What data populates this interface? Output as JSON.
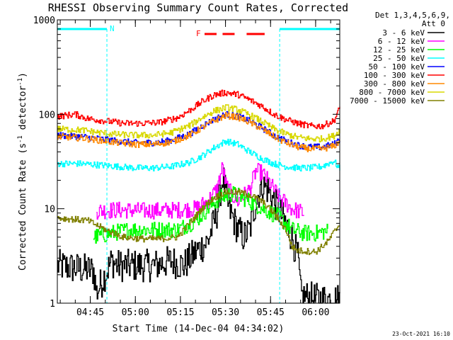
{
  "chart_data": {
    "type": "line",
    "title": "RHESSI Observing Summary Count Rates, Corrected",
    "xlabel": "Start Time (14-Dec-04 04:34:02)",
    "ylabel_main": "Corrected Count Rate (s",
    "ylabel_sup1": "-1",
    "ylabel_mid": " detector",
    "ylabel_sup2": "-1",
    "ylabel_end": ")",
    "y_scale": "log",
    "ylim": [
      1,
      1000
    ],
    "xlim_minutes": [
      0,
      94
    ],
    "x_ticks": [
      {
        "minute": 10.97,
        "label": "04:45"
      },
      {
        "minute": 25.97,
        "label": "05:00"
      },
      {
        "minute": 40.97,
        "label": "05:15"
      },
      {
        "minute": 55.97,
        "label": "05:30"
      },
      {
        "minute": 70.97,
        "label": "05:45"
      },
      {
        "minute": 85.97,
        "label": "06:00"
      }
    ],
    "y_ticks": [
      {
        "value": 1,
        "label": "1"
      },
      {
        "value": 10,
        "label": "10"
      },
      {
        "value": 100,
        "label": "100"
      },
      {
        "value": 1000,
        "label": "1000"
      }
    ],
    "legend_header_1": "Det 1,3,4,5,6,9,",
    "legend_header_2": "Att 0",
    "legend_placement": "right",
    "series": [
      {
        "name": "3 - 6 keV",
        "color": "#000000",
        "points": [
          [
            0,
            2.5
          ],
          [
            12,
            2.2
          ],
          [
            13,
            1.3
          ],
          [
            18,
            2.8
          ],
          [
            20,
            2.5
          ],
          [
            24,
            2.5
          ],
          [
            28,
            2.5
          ],
          [
            32,
            2.5
          ],
          [
            38,
            2.8
          ],
          [
            42,
            2.5
          ],
          [
            46,
            3.5
          ],
          [
            50,
            4.5
          ],
          [
            53,
            9
          ],
          [
            55,
            22
          ],
          [
            56,
            14
          ],
          [
            57,
            10
          ],
          [
            60,
            6
          ],
          [
            62,
            5
          ],
          [
            64,
            6
          ],
          [
            66,
            12
          ],
          [
            68,
            18
          ],
          [
            70,
            16
          ],
          [
            72,
            12
          ],
          [
            74,
            9
          ],
          [
            76,
            7
          ],
          [
            78,
            5
          ],
          [
            80,
            3
          ],
          [
            81,
            1.2
          ],
          [
            86,
            1.1
          ],
          [
            94,
            1.1
          ]
        ]
      },
      {
        "name": "6 - 12 keV",
        "color": "#ff00ff",
        "points": [
          [
            13,
            9.5
          ],
          [
            20,
            9.7
          ],
          [
            30,
            9.5
          ],
          [
            40,
            9.7
          ],
          [
            46,
            10
          ],
          [
            50,
            12
          ],
          [
            53,
            16
          ],
          [
            55,
            28
          ],
          [
            56,
            18
          ],
          [
            58,
            14
          ],
          [
            60,
            12
          ],
          [
            64,
            16
          ],
          [
            66,
            25
          ],
          [
            68,
            24
          ],
          [
            70,
            20
          ],
          [
            72,
            16
          ],
          [
            74,
            13
          ],
          [
            78,
            10
          ],
          [
            82,
            9
          ]
        ]
      },
      {
        "name": "12 - 25 keV",
        "color": "#00ff00",
        "points": [
          [
            12,
            5
          ],
          [
            18,
            5.5
          ],
          [
            24,
            6
          ],
          [
            32,
            6
          ],
          [
            40,
            6
          ],
          [
            46,
            7.5
          ],
          [
            50,
            10
          ],
          [
            54,
            13
          ],
          [
            58,
            14.5
          ],
          [
            62,
            13
          ],
          [
            66,
            11
          ],
          [
            70,
            9.5
          ],
          [
            74,
            8
          ],
          [
            78,
            6
          ],
          [
            82,
            5.5
          ],
          [
            86,
            5.5
          ],
          [
            90,
            5.8
          ]
        ]
      },
      {
        "name": "25 - 50 keV",
        "color": "#00ffff",
        "points": [
          [
            0,
            30
          ],
          [
            8,
            30
          ],
          [
            14,
            29
          ],
          [
            20,
            28
          ],
          [
            26,
            27
          ],
          [
            32,
            27
          ],
          [
            38,
            28
          ],
          [
            44,
            31
          ],
          [
            48,
            36
          ],
          [
            52,
            44
          ],
          [
            56,
            52
          ],
          [
            60,
            48
          ],
          [
            64,
            40
          ],
          [
            68,
            34
          ],
          [
            72,
            30
          ],
          [
            76,
            28
          ],
          [
            80,
            27
          ],
          [
            84,
            27
          ],
          [
            88,
            28
          ],
          [
            92,
            32
          ],
          [
            94,
            26
          ]
        ]
      },
      {
        "name": "50 - 100 keV",
        "color": "#0000ff",
        "points": [
          [
            0,
            60
          ],
          [
            8,
            58
          ],
          [
            14,
            55
          ],
          [
            20,
            52
          ],
          [
            26,
            50
          ],
          [
            32,
            50
          ],
          [
            38,
            53
          ],
          [
            44,
            62
          ],
          [
            48,
            75
          ],
          [
            52,
            88
          ],
          [
            56,
            100
          ],
          [
            60,
            96
          ],
          [
            64,
            85
          ],
          [
            68,
            72
          ],
          [
            72,
            60
          ],
          [
            76,
            52
          ],
          [
            80,
            47
          ],
          [
            84,
            45
          ],
          [
            88,
            45
          ],
          [
            92,
            48
          ],
          [
            94,
            55
          ]
        ]
      },
      {
        "name": "100 - 300 keV",
        "color": "#ff0000",
        "points": [
          [
            0,
            95
          ],
          [
            6,
            100
          ],
          [
            10,
            90
          ],
          [
            16,
            85
          ],
          [
            22,
            80
          ],
          [
            28,
            80
          ],
          [
            34,
            82
          ],
          [
            40,
            92
          ],
          [
            44,
            110
          ],
          [
            48,
            135
          ],
          [
            52,
            160
          ],
          [
            56,
            170
          ],
          [
            60,
            162
          ],
          [
            64,
            142
          ],
          [
            68,
            122
          ],
          [
            72,
            100
          ],
          [
            76,
            88
          ],
          [
            80,
            80
          ],
          [
            84,
            75
          ],
          [
            88,
            75
          ],
          [
            92,
            85
          ],
          [
            94,
            118
          ]
        ]
      },
      {
        "name": "300 - 800 keV",
        "color": "#ff8800",
        "points": [
          [
            0,
            58
          ],
          [
            8,
            56
          ],
          [
            14,
            53
          ],
          [
            20,
            50
          ],
          [
            26,
            48
          ],
          [
            32,
            48
          ],
          [
            38,
            51
          ],
          [
            44,
            60
          ],
          [
            48,
            72
          ],
          [
            52,
            85
          ],
          [
            56,
            97
          ],
          [
            60,
            93
          ],
          [
            64,
            82
          ],
          [
            68,
            70
          ],
          [
            72,
            58
          ],
          [
            76,
            50
          ],
          [
            80,
            45
          ],
          [
            84,
            43
          ],
          [
            88,
            43
          ],
          [
            92,
            46
          ],
          [
            94,
            52
          ]
        ]
      },
      {
        "name": "800 - 7000 keV",
        "color": "#d8d800",
        "points": [
          [
            0,
            70
          ],
          [
            8,
            68
          ],
          [
            14,
            64
          ],
          [
            20,
            61
          ],
          [
            26,
            60
          ],
          [
            32,
            60
          ],
          [
            38,
            64
          ],
          [
            44,
            76
          ],
          [
            48,
            92
          ],
          [
            52,
            108
          ],
          [
            56,
            118
          ],
          [
            60,
            112
          ],
          [
            64,
            98
          ],
          [
            68,
            84
          ],
          [
            72,
            70
          ],
          [
            76,
            62
          ],
          [
            80,
            57
          ],
          [
            84,
            55
          ],
          [
            88,
            55
          ],
          [
            92,
            59
          ],
          [
            94,
            68
          ]
        ]
      },
      {
        "name": "7000 - 15000 keV",
        "color": "#808000",
        "points": [
          [
            0,
            8
          ],
          [
            10,
            7.5
          ],
          [
            16,
            6
          ],
          [
            22,
            5
          ],
          [
            28,
            4.8
          ],
          [
            34,
            4.8
          ],
          [
            40,
            5
          ],
          [
            44,
            7
          ],
          [
            48,
            10
          ],
          [
            52,
            13
          ],
          [
            56,
            15
          ],
          [
            60,
            15
          ],
          [
            64,
            14
          ],
          [
            68,
            12
          ],
          [
            72,
            9
          ],
          [
            76,
            6
          ],
          [
            78,
            4
          ],
          [
            80,
            3.6
          ],
          [
            86,
            3.5
          ],
          [
            90,
            4.5
          ],
          [
            94,
            7
          ]
        ]
      }
    ],
    "annotations": {
      "night_bar_label": "N",
      "flare_label": "F",
      "night_intervals_minutes": [
        [
          0,
          16.5
        ],
        [
          74,
          94
        ]
      ],
      "flare_intervals_minutes": [
        [
          49,
          53
        ],
        [
          55,
          59
        ],
        [
          63,
          69
        ]
      ]
    },
    "timestamp": "23-Oct-2021 16:10"
  }
}
